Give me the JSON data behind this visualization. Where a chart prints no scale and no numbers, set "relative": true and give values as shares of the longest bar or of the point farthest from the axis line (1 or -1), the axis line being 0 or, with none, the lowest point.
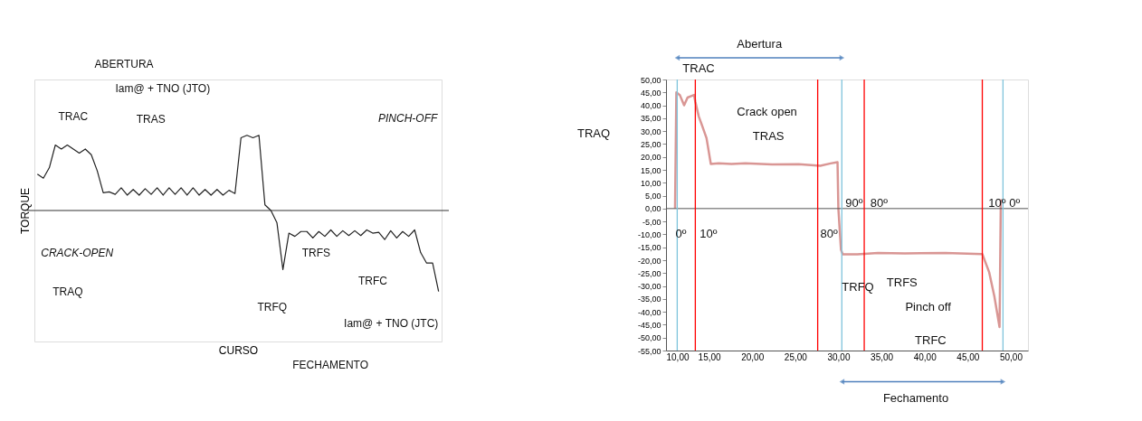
{
  "chart_data": [
    {
      "type": "line",
      "relative": true,
      "xlabel": "CURSO",
      "ylabel": "TORQUE",
      "categories": [
        null,
        null,
        null,
        null,
        null,
        null,
        null,
        null,
        null,
        null,
        null,
        null,
        null,
        null,
        null,
        null,
        null,
        null,
        null,
        null,
        null,
        null,
        null,
        null,
        null,
        null,
        null,
        null,
        null,
        null,
        null,
        null,
        null,
        null,
        null,
        null,
        null,
        null,
        null,
        null,
        null,
        null,
        null,
        null,
        null,
        null,
        null,
        null,
        null,
        null,
        null,
        null,
        null,
        null,
        null,
        null,
        null,
        null,
        null,
        null,
        null,
        null,
        null,
        null,
        null,
        null,
        null,
        null
      ],
      "series": [
        {
          "color": "#222222",
          "values": [
            0.45,
            0.4,
            0.53,
            0.81,
            0.76,
            0.81,
            0.76,
            0.71,
            0.76,
            0.69,
            0.49,
            0.22,
            0.23,
            0.2,
            0.28,
            0.19,
            0.26,
            0.19,
            0.27,
            0.2,
            0.28,
            0.19,
            0.28,
            0.2,
            0.28,
            0.19,
            0.28,
            0.19,
            0.26,
            0.19,
            0.26,
            0.19,
            0.25,
            0.21,
            0.9,
            0.93,
            0.9,
            0.93,
            0.07,
            0,
            -0.15,
            -0.73,
            -0.28,
            -0.32,
            -0.26,
            -0.26,
            -0.34,
            -0.26,
            -0.32,
            -0.24,
            -0.32,
            -0.25,
            -0.31,
            -0.25,
            -0.31,
            -0.24,
            -0.28,
            -0.27,
            -0.36,
            -0.25,
            -0.34,
            -0.26,
            -0.32,
            -0.24,
            -0.52,
            -0.65,
            -0.65,
            -1
          ]
        }
      ],
      "annotations": [
        "ABERTURA",
        "Iam@ + TNO (JTO)",
        "TRAC",
        "TRAS",
        "PINCH-OFF",
        "CRACK-OPEN",
        "TRAQ",
        "TRFQ",
        "TRFS",
        "TRFC",
        "Iam@ + TNO (JTC)",
        "FECHAMENTO"
      ]
    },
    {
      "type": "line",
      "xlim": [
        10,
        52
      ],
      "ylim": [
        -55,
        50
      ],
      "xticks": [
        {
          "value": 10,
          "label": "10,00"
        },
        {
          "value": 15,
          "label": "15,00"
        },
        {
          "value": 20,
          "label": "20,00"
        },
        {
          "value": 25,
          "label": "25,00"
        },
        {
          "value": 30,
          "label": "30,00"
        },
        {
          "value": 35,
          "label": "35,00"
        },
        {
          "value": 40,
          "label": "40,00"
        },
        {
          "value": 45,
          "label": "45,00"
        },
        {
          "value": 50,
          "label": "50,00"
        }
      ],
      "yticks": [
        {
          "value": 50,
          "label": "50,00"
        },
        {
          "value": 45,
          "label": "45,00"
        },
        {
          "value": 40,
          "label": "40,00"
        },
        {
          "value": 35,
          "label": "35,00"
        },
        {
          "value": 30,
          "label": "30,00"
        },
        {
          "value": 25,
          "label": "25,00"
        },
        {
          "value": 20,
          "label": "20,00"
        },
        {
          "value": 15,
          "label": "15,00"
        },
        {
          "value": 10,
          "label": "10,00"
        },
        {
          "value": 5,
          "label": "5,00"
        },
        {
          "value": 0,
          "label": "0,00"
        },
        {
          "value": -5,
          "label": "-5,00"
        },
        {
          "value": -10,
          "label": "-10,00"
        },
        {
          "value": -15,
          "label": "-15,00"
        },
        {
          "value": -20,
          "label": "-20,00"
        },
        {
          "value": -25,
          "label": "-25,00"
        },
        {
          "value": -30,
          "label": "-30,00"
        },
        {
          "value": -35,
          "label": "-35,00"
        },
        {
          "value": -40,
          "label": "-40,00"
        },
        {
          "value": -45,
          "label": "-45,00"
        },
        {
          "value": -50,
          "label": "-50,00"
        },
        {
          "value": -55,
          "label": "-55,00"
        }
      ],
      "series": [
        {
          "color": "#d99694",
          "x": [
            11.05,
            11.2,
            11.6,
            12.1,
            12.5,
            12.85,
            13.25,
            13.4,
            13.8,
            14.2,
            14.7,
            15.2,
            16.1,
            17.6,
            19.2,
            22.3,
            25.4,
            27.9,
            29.1,
            29.9,
            30.0,
            30.3,
            30.5,
            32.2,
            34.6,
            37.7,
            42.4,
            46.7,
            47.5,
            48.1,
            48.7,
            48.85
          ],
          "values": [
            0,
            45,
            44,
            40,
            43,
            43.5,
            44,
            41.4,
            35.7,
            32,
            27.3,
            17.3,
            17.5,
            17.3,
            17.5,
            17.1,
            17.2,
            16.6,
            17.5,
            18,
            0,
            -15.9,
            -17.7,
            -17.7,
            -17.2,
            -17.4,
            -17.2,
            -17.6,
            -24.7,
            -34,
            -45.9,
            3.6
          ]
        }
      ],
      "ref_lines": [
        {
          "axis": "x",
          "value": 13.4,
          "color": "#ff0000"
        },
        {
          "axis": "x",
          "value": 27.6,
          "color": "#ff0000"
        },
        {
          "axis": "x",
          "value": 33.0,
          "color": "#ff0000"
        },
        {
          "axis": "x",
          "value": 46.7,
          "color": "#ff0000"
        },
        {
          "axis": "x",
          "value": 11.3,
          "color": "#7fc4dc"
        },
        {
          "axis": "x",
          "value": 30.4,
          "color": "#7fc4dc"
        },
        {
          "axis": "x",
          "value": 49.1,
          "color": "#7fc4dc"
        }
      ],
      "annotations": [
        "TRAC",
        "TRAQ",
        "Abertura",
        "Crack open",
        "TRAS",
        "TRFQ",
        "TRFS",
        "Pinch off",
        "TRFC",
        "Fechamento",
        {
          "text": "0º",
          "x": 10.8,
          "y": -10
        },
        {
          "text": "10º",
          "x": 13.6,
          "y": -10
        },
        {
          "text": "80º",
          "x": 27.6,
          "y": -10
        },
        {
          "text": "90º",
          "x": 30.5,
          "y": 1.9
        },
        {
          "text": "80º",
          "x": 33.4,
          "y": 1.9
        },
        {
          "text": "10º",
          "x": 47.1,
          "y": 1.9
        },
        {
          "text": "0º",
          "x": 49.5,
          "y": 1.9
        }
      ]
    }
  ]
}
